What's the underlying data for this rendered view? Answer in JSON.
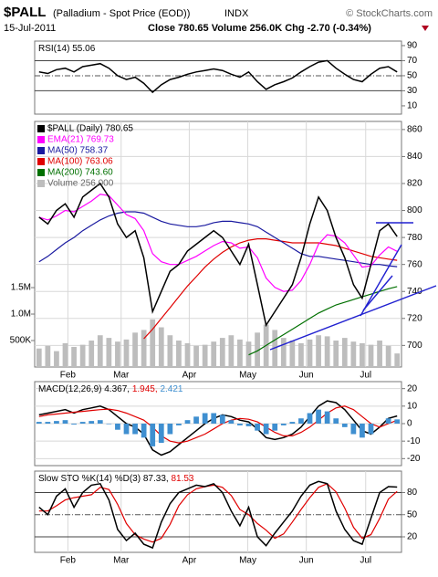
{
  "header": {
    "symbol": "$PALL",
    "description": "(Palladium - Spot Price (EOD))",
    "exchange": "INDX",
    "copyright": "© StockCharts.com",
    "date": "15-Jul-2011",
    "quote": "Close 780.65 Volume 256.0K Chg -2.70 (-0.34%)"
  },
  "chart_data": [
    {
      "type": "line",
      "label": "RSI(14) 55.06",
      "x": [
        0,
        1,
        2,
        3,
        4,
        5,
        6,
        7,
        8,
        9,
        10,
        11,
        12,
        13,
        14,
        15,
        16,
        17,
        18,
        19,
        20,
        21,
        22,
        23,
        24,
        25,
        26,
        27,
        28,
        29,
        30,
        31,
        32,
        33,
        34,
        35,
        36,
        37,
        38,
        39,
        40,
        41
      ],
      "xlim": [
        -0.5,
        41.5
      ],
      "ylim": [
        -1,
        96
      ],
      "yticks": [
        90,
        70,
        50,
        30,
        10
      ],
      "levels": [
        70,
        30
      ],
      "midline": 50,
      "series": [
        {
          "name": null,
          "color": "#000000",
          "values": [
            55,
            53,
            58,
            60,
            55,
            62,
            64,
            66,
            60,
            50,
            45,
            48,
            40,
            28,
            38,
            45,
            48,
            52,
            55,
            57,
            59,
            57,
            52,
            48,
            55,
            42,
            32,
            38,
            42,
            47,
            55,
            62,
            68,
            70,
            60,
            52,
            45,
            42,
            52,
            60,
            62,
            55.06
          ]
        }
      ]
    },
    {
      "type": "line",
      "x": [
        0,
        1,
        2,
        3,
        4,
        5,
        6,
        7,
        8,
        9,
        10,
        11,
        12,
        13,
        14,
        15,
        16,
        17,
        18,
        19,
        20,
        21,
        22,
        23,
        24,
        25,
        26,
        27,
        28,
        29,
        30,
        31,
        32,
        33,
        34,
        35,
        36,
        37,
        38,
        39,
        40,
        41
      ],
      "xlim": [
        -0.5,
        41.5
      ],
      "ylim": [
        684,
        866
      ],
      "yticks": [
        860,
        840,
        820,
        800,
        780,
        760,
        740,
        720,
        700
      ],
      "y2lim": [
        0,
        4640000
      ],
      "y2ticks": [
        {
          "value": 1500000,
          "label": "1.5M"
        },
        {
          "value": 1000000,
          "label": "1.0M"
        },
        {
          "value": 500000,
          "label": "500K"
        }
      ],
      "xticks": [
        {
          "value": 3.3,
          "label": "Feb"
        },
        {
          "value": 9.4,
          "label": "Mar"
        },
        {
          "value": 17.2,
          "label": "Apr"
        },
        {
          "value": 23.9,
          "label": "May"
        },
        {
          "value": 30.6,
          "label": "Jun"
        },
        {
          "value": 37.4,
          "label": "Jul"
        }
      ],
      "grid": true,
      "series": [
        {
          "name": "Volume 256,000",
          "color": "#bdbdbd",
          "style": "bar",
          "axis": "y2",
          "values": [
            350000,
            400000,
            300000,
            450000,
            380000,
            420000,
            500000,
            600000,
            550000,
            480000,
            520000,
            650000,
            700000,
            900000,
            750000,
            600000,
            500000,
            450000,
            400000,
            420000,
            480000,
            550000,
            600000,
            520000,
            480000,
            650000,
            800000,
            700000,
            550000,
            500000,
            450000,
            520000,
            600000,
            580000,
            500000,
            550000,
            480000,
            450000,
            420000,
            500000,
            400000,
            256000
          ]
        },
        {
          "name": "MA(200) 743.60",
          "color": "#007000",
          "values": [
            null,
            null,
            null,
            null,
            null,
            null,
            null,
            null,
            null,
            null,
            null,
            null,
            null,
            null,
            null,
            null,
            null,
            null,
            null,
            null,
            null,
            null,
            null,
            null,
            693,
            696,
            700,
            704,
            708,
            712,
            716,
            720,
            724,
            727,
            730,
            732,
            734,
            736,
            738,
            740,
            742,
            743.6
          ]
        },
        {
          "name": "MA(100) 763.06",
          "color": "#e00000",
          "values": [
            null,
            null,
            null,
            null,
            null,
            null,
            null,
            null,
            null,
            null,
            null,
            null,
            705,
            712,
            720,
            728,
            736,
            744,
            751,
            758,
            764,
            769,
            773,
            776,
            778,
            779,
            779,
            778,
            777,
            776,
            776,
            776,
            776,
            775,
            774,
            772,
            770,
            768,
            766,
            765,
            764,
            763.06
          ]
        },
        {
          "name": "MA(50) 758.37",
          "color": "#1a1aa0",
          "values": [
            762,
            766,
            771,
            776,
            780,
            785,
            789,
            793,
            796,
            798,
            799,
            799,
            798,
            795,
            792,
            790,
            789,
            788,
            788,
            789,
            791,
            792,
            792,
            791,
            790,
            788,
            784,
            780,
            776,
            772,
            768,
            766,
            766,
            765,
            764,
            763,
            762,
            761,
            760,
            760,
            759,
            758.37
          ]
        },
        {
          "name": "EMA(21) 769.73",
          "color": "#ff00ff",
          "values": [
            795,
            793,
            796,
            800,
            799,
            803,
            807,
            812,
            811,
            804,
            797,
            794,
            785,
            768,
            762,
            760,
            760,
            763,
            766,
            770,
            774,
            777,
            776,
            772,
            773,
            765,
            750,
            743,
            740,
            741,
            748,
            760,
            775,
            782,
            781,
            776,
            767,
            758,
            759,
            767,
            773,
            769.73
          ]
        },
        {
          "name": "$PALL (Daily) 780.65",
          "color": "#000000",
          "values": [
            795,
            790,
            800,
            805,
            795,
            810,
            815,
            820,
            810,
            790,
            780,
            785,
            765,
            725,
            740,
            755,
            760,
            770,
            775,
            780,
            785,
            780,
            770,
            760,
            775,
            745,
            715,
            725,
            735,
            745,
            765,
            790,
            810,
            800,
            780,
            765,
            745,
            735,
            760,
            785,
            790,
            780.65
          ]
        }
      ]
    },
    {
      "type": "line",
      "label": "MACD(12,26,9)",
      "x": [
        0,
        1,
        2,
        3,
        4,
        5,
        6,
        7,
        8,
        9,
        10,
        11,
        12,
        13,
        14,
        15,
        16,
        17,
        18,
        19,
        20,
        21,
        22,
        23,
        24,
        25,
        26,
        27,
        28,
        29,
        30,
        31,
        32,
        33,
        34,
        35,
        36,
        37,
        38,
        39,
        40,
        41
      ],
      "xlim": [
        -0.5,
        41.5
      ],
      "ylim": [
        -24,
        24
      ],
      "yticks": [
        20,
        10,
        0,
        -10,
        -20
      ],
      "grid": true,
      "series": [
        {
          "name": "4.367,",
          "color": "#000000",
          "values": [
            5,
            6,
            7,
            8,
            6,
            8,
            9,
            10,
            8,
            4,
            0,
            -2,
            -6,
            -15,
            -18,
            -16,
            -12,
            -8,
            -4,
            0,
            3,
            5,
            4,
            2,
            1,
            -3,
            -8,
            -9,
            -8,
            -6,
            -2,
            4,
            10,
            13,
            12,
            8,
            2,
            -4,
            -6,
            -2,
            3,
            4.367
          ]
        },
        {
          "name": "1.945,",
          "color": "#e00000",
          "values": [
            4,
            5,
            5.5,
            6,
            6.5,
            7,
            7.5,
            8,
            8.3,
            7.5,
            6,
            4,
            2,
            -2,
            -7,
            -10,
            -11,
            -10,
            -8,
            -6,
            -3,
            0,
            2,
            3,
            2.5,
            1,
            -2,
            -5,
            -7,
            -7,
            -5,
            -2,
            2,
            6,
            9,
            10,
            8,
            4,
            0,
            -2,
            0,
            1.945
          ]
        },
        {
          "name": "2.421",
          "color": "#3f8fd0",
          "style": "bar",
          "values": [
            1,
            1,
            1.5,
            2,
            -0.5,
            1,
            1.5,
            2,
            -0.3,
            -3.5,
            -6,
            -6,
            -8,
            -13,
            -11,
            -6,
            -1,
            2,
            4,
            6,
            6,
            5,
            2,
            -1,
            -1.5,
            -4,
            -6,
            -4,
            -1,
            1,
            3,
            6,
            8,
            7,
            3,
            -2,
            -6,
            -8,
            -6,
            0,
            3,
            2.421
          ]
        }
      ]
    },
    {
      "type": "line",
      "label": "Slow STO %K(14) %D(3)",
      "x": [
        0,
        1,
        2,
        3,
        4,
        5,
        6,
        7,
        8,
        9,
        10,
        11,
        12,
        13,
        14,
        15,
        16,
        17,
        18,
        19,
        20,
        21,
        22,
        23,
        24,
        25,
        26,
        27,
        28,
        29,
        30,
        31,
        32,
        33,
        34,
        35,
        36,
        37,
        38,
        39,
        40,
        41
      ],
      "xlim": [
        -0.5,
        41.5
      ],
      "ylim": [
        -1,
        109
      ],
      "yticks": [
        80,
        50,
        20
      ],
      "levels": [
        80,
        20
      ],
      "midline": 50,
      "xticks": [
        {
          "value": 3.3,
          "label": "Feb"
        },
        {
          "value": 9.4,
          "label": "Mar"
        },
        {
          "value": 17.2,
          "label": "Apr"
        },
        {
          "value": 23.9,
          "label": "May"
        },
        {
          "value": 30.6,
          "label": "Jun"
        },
        {
          "value": 37.4,
          "label": "Jul"
        }
      ],
      "series": [
        {
          "name": "81.53",
          "color": "#e00000",
          "values": [
            55,
            55,
            62,
            70,
            73,
            75,
            77,
            87,
            84,
            64,
            38,
            23,
            17,
            13,
            18,
            37,
            62,
            77,
            85,
            88,
            90,
            87,
            76,
            57,
            50,
            38,
            29,
            18,
            24,
            40,
            57,
            73,
            87,
            92,
            81,
            59,
            33,
            18,
            23,
            45,
            71,
            81.53
          ]
        },
        {
          "name": "87.33,",
          "color": "#000000",
          "values": [
            60,
            50,
            75,
            85,
            60,
            80,
            90,
            92,
            70,
            30,
            15,
            25,
            10,
            5,
            40,
            65,
            80,
            85,
            90,
            88,
            92,
            80,
            55,
            35,
            60,
            20,
            8,
            25,
            40,
            55,
            75,
            90,
            95,
            92,
            55,
            30,
            15,
            10,
            45,
            80,
            88,
            87.33
          ]
        }
      ]
    }
  ]
}
